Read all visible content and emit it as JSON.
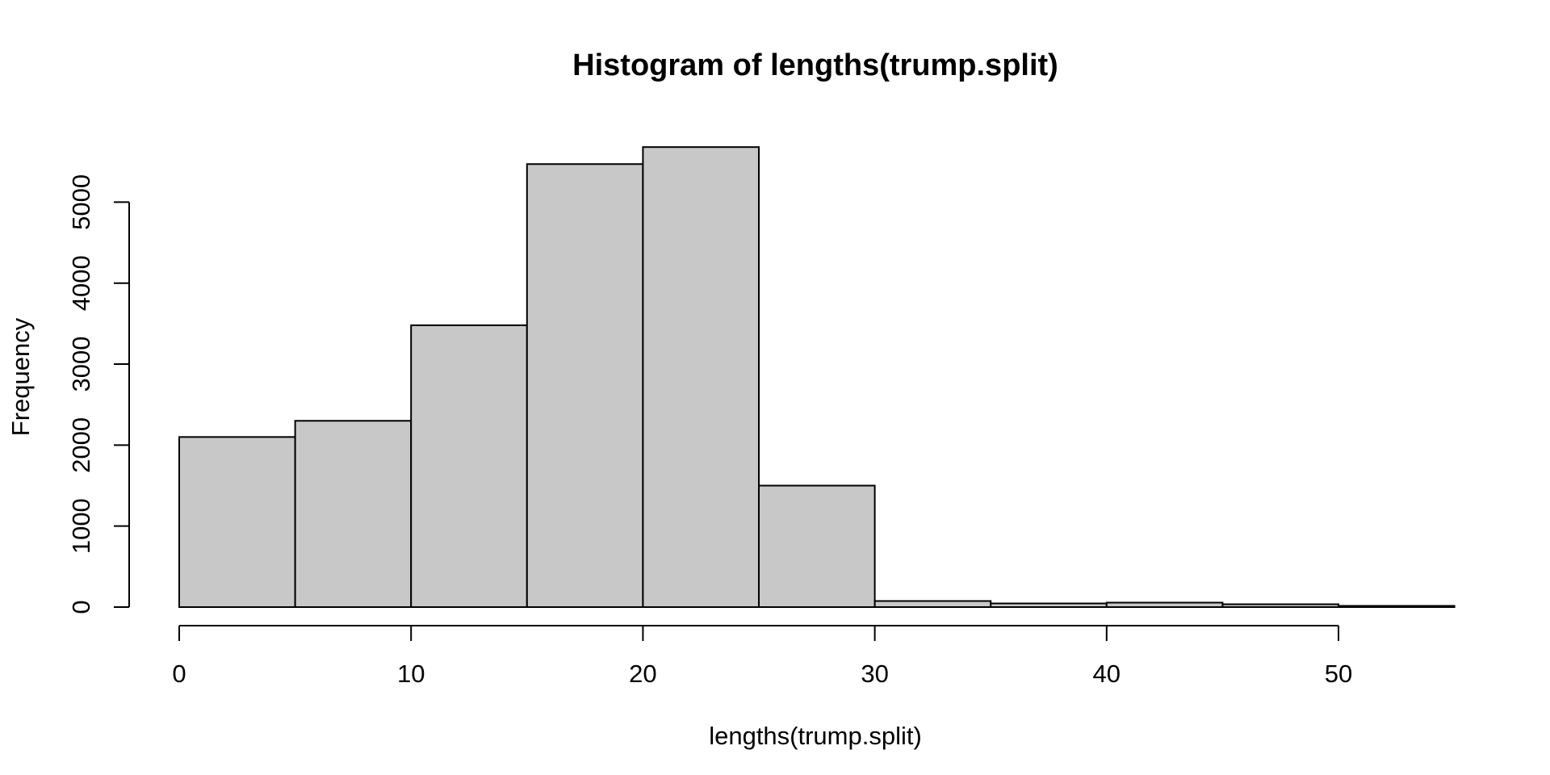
{
  "chart_data": {
    "type": "bar",
    "title": "Histogram of lengths(trump.split)",
    "xlabel": "lengths(trump.split)",
    "ylabel": "Frequency",
    "bins": [
      {
        "start": 0,
        "end": 5,
        "count": 2100
      },
      {
        "start": 5,
        "end": 10,
        "count": 2300
      },
      {
        "start": 10,
        "end": 15,
        "count": 3480
      },
      {
        "start": 15,
        "end": 20,
        "count": 5470
      },
      {
        "start": 20,
        "end": 25,
        "count": 5680
      },
      {
        "start": 25,
        "end": 30,
        "count": 1500
      },
      {
        "start": 30,
        "end": 35,
        "count": 75
      },
      {
        "start": 35,
        "end": 40,
        "count": 45
      },
      {
        "start": 40,
        "end": 45,
        "count": 55
      },
      {
        "start": 45,
        "end": 50,
        "count": 35
      },
      {
        "start": 50,
        "end": 55,
        "count": 15
      }
    ],
    "xlim": [
      0,
      55
    ],
    "ylim": [
      0,
      5680
    ],
    "xticks": [
      0,
      10,
      20,
      30,
      40,
      50
    ],
    "yticks": [
      0,
      1000,
      2000,
      3000,
      4000,
      5000
    ],
    "grid": false,
    "bar_fill": "#c8c8c8",
    "bar_stroke": "#000000"
  }
}
